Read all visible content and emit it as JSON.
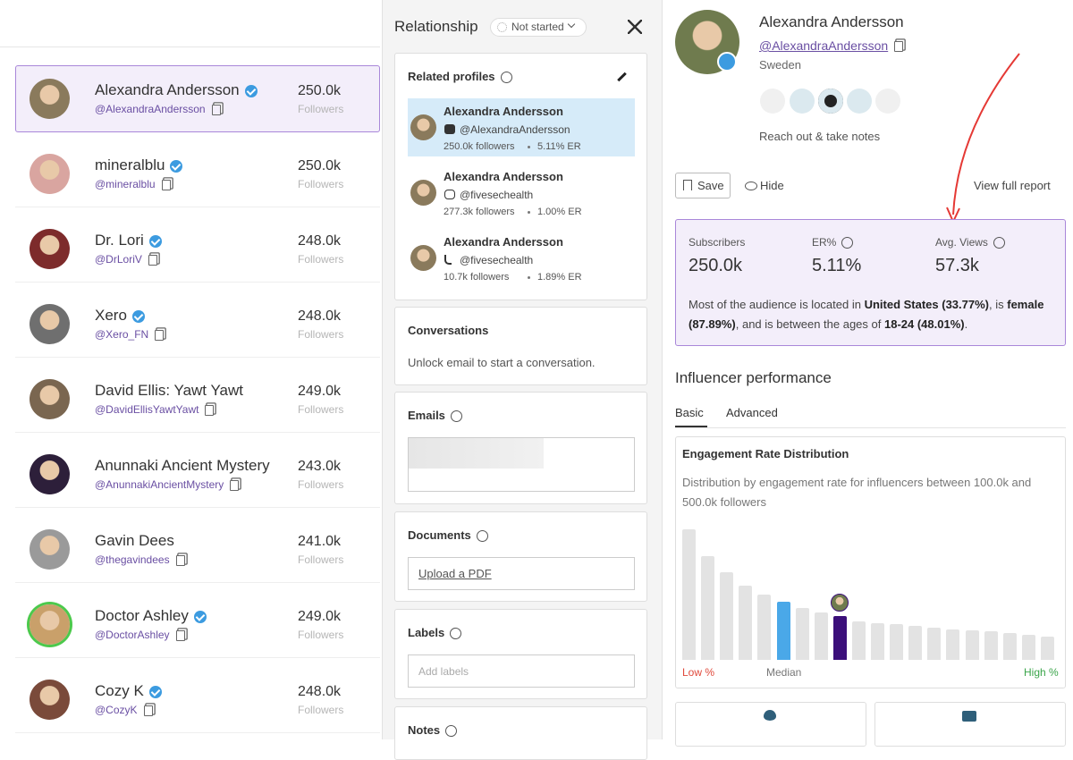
{
  "influencers": {
    "followers_label": "Followers",
    "items": [
      {
        "name": "Alexandra Andersson",
        "handle": "@AlexandraAndersson",
        "followers": "250.0k",
        "verified": true,
        "selected": true
      },
      {
        "name": "mineralblu",
        "handle": "@mineralblu",
        "followers": "250.0k",
        "verified": true
      },
      {
        "name": "Dr. Lori",
        "handle": "@DrLoriV",
        "followers": "248.0k",
        "verified": true
      },
      {
        "name": "Xero",
        "handle": "@Xero_FN",
        "followers": "248.0k",
        "verified": true
      },
      {
        "name": "David Ellis: Yawt Yawt",
        "handle": "@DavidEllisYawtYawt",
        "followers": "249.0k",
        "verified": false
      },
      {
        "name": "Anunnaki Ancient Mystery",
        "handle": "@AnunnakiAncientMystery",
        "followers": "243.0k",
        "verified": false
      },
      {
        "name": "Gavin Dees",
        "handle": "@thegavindees",
        "followers": "241.0k",
        "verified": false
      },
      {
        "name": "Doctor Ashley",
        "handle": "@DoctorAshley",
        "followers": "249.0k",
        "verified": true
      },
      {
        "name": "Cozy K",
        "handle": "@CozyK",
        "followers": "248.0k",
        "verified": true
      }
    ]
  },
  "relationship": {
    "title": "Relationship",
    "status": "Not started",
    "related_profiles": {
      "title": "Related profiles",
      "items": [
        {
          "name": "Alexandra Andersson",
          "platform": "youtube",
          "handle": "@AlexandraAndersson",
          "followers": "250.0k followers",
          "er": "5.11% ER",
          "selected": true
        },
        {
          "name": "Alexandra Andersson",
          "platform": "instagram",
          "handle": "@fivesechealth",
          "followers": "277.3k followers",
          "er": "1.00% ER"
        },
        {
          "name": "Alexandra Andersson",
          "platform": "tiktok",
          "handle": "@fivesechealth",
          "followers": "10.7k followers",
          "er": "1.89% ER"
        }
      ]
    },
    "conversations": {
      "title": "Conversations",
      "text": "Unlock email to start a conversation."
    },
    "emails": {
      "title": "Emails"
    },
    "documents": {
      "title": "Documents",
      "button": "Upload a PDF"
    },
    "labels": {
      "title": "Labels",
      "placeholder": "Add labels"
    },
    "notes": {
      "title": "Notes"
    }
  },
  "profile": {
    "name": "Alexandra Andersson",
    "handle": "@AlexandraAndersson",
    "country": "Sweden",
    "reach_out": "Reach out & take notes",
    "save": "Save",
    "hide": "Hide",
    "full_report": "View full report",
    "stats": [
      {
        "label": "Subscribers",
        "value": "250.0k"
      },
      {
        "label": "ER%",
        "value": "5.11%"
      },
      {
        "label": "Avg. Views",
        "value": "57.3k"
      }
    ],
    "summary": [
      {
        "text": "Most of the audience is located in "
      },
      {
        "text": "United States (33.77%)",
        "bold": true
      },
      {
        "text": ", is "
      },
      {
        "text": "female (87.89%)",
        "bold": true
      },
      {
        "text": ", and is between the ages of "
      },
      {
        "text": "18-24 (48.01%)",
        "bold": true
      },
      {
        "text": "."
      }
    ],
    "performance_title": "Influencer performance",
    "tabs": [
      "Basic",
      "Advanced"
    ],
    "distribution": {
      "title": "Engagement Rate Distribution",
      "description": "Distribution by engagement rate for influencers between 100.0k and 500.0k followers",
      "values": [
        146,
        116,
        98,
        83,
        73,
        65,
        58,
        53,
        49,
        43,
        41,
        40,
        38,
        36,
        34,
        33,
        32,
        30,
        28,
        26
      ],
      "colors": [
        "#e3e3e3",
        "#e3e3e3",
        "#e3e3e3",
        "#e3e3e3",
        "#e3e3e3",
        "#4aa8e8",
        "#e3e3e3",
        "#e3e3e3",
        "#3b0f7a",
        "#e3e3e3",
        "#e3e3e3",
        "#e3e3e3",
        "#e3e3e3",
        "#e3e3e3",
        "#e3e3e3",
        "#e3e3e3",
        "#e3e3e3",
        "#e3e3e3",
        "#e3e3e3",
        "#e3e3e3"
      ],
      "low_label": "Low %",
      "median_label": "Median",
      "high_label": "High %"
    }
  }
}
